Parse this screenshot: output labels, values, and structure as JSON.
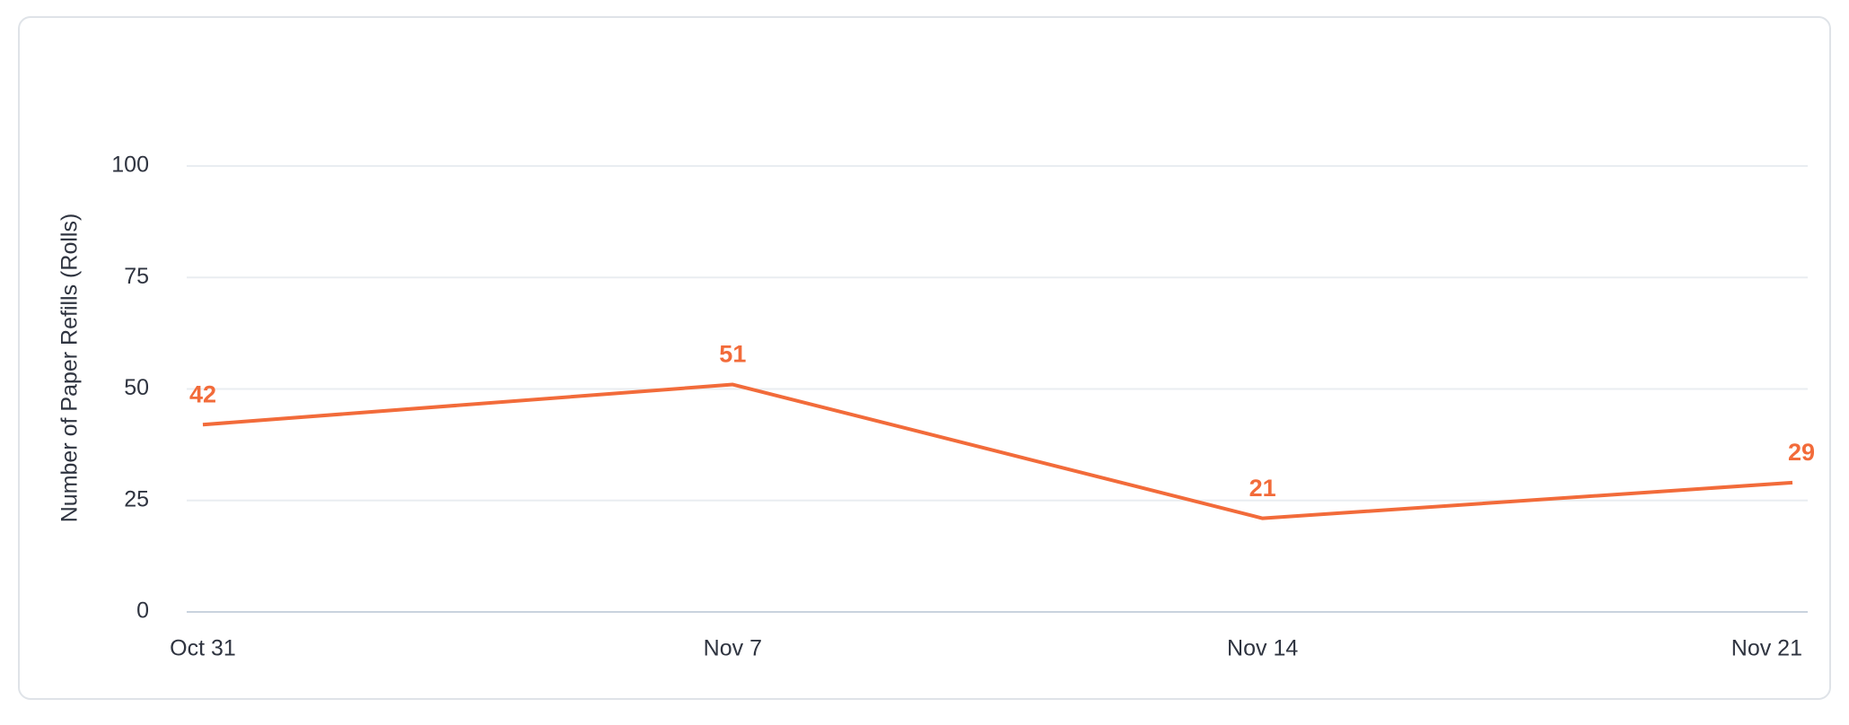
{
  "chart_data": {
    "type": "line",
    "y_axis_label": "Number of Paper Refills (Rolls)",
    "categories": [
      "Oct 31",
      "Nov 7",
      "Nov 14",
      "Nov 21"
    ],
    "series": [
      {
        "name": "Paper Refills",
        "color": "#f26b3a",
        "values": [
          42,
          51,
          21,
          29
        ]
      }
    ],
    "ylim": [
      0,
      100
    ],
    "yticks": [
      0,
      25,
      50,
      75,
      100
    ],
    "grid": true,
    "data_labels": true
  }
}
